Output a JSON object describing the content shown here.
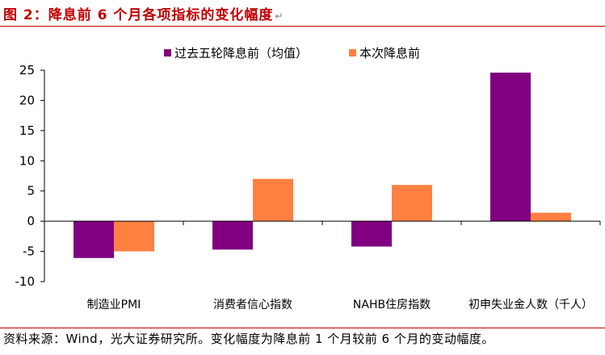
{
  "figure": {
    "title": "图 2：降息前 6 个月各项指标的变化幅度",
    "return_mark": "↵",
    "source": "资料来源：Wind，光大证券研究所。变化幅度为降息前 1 个月较前 6 个月的变动幅度。"
  },
  "colors": {
    "series_1": "#800080",
    "series_2": "#ff8040",
    "title": "#c00000",
    "axis": "#000000"
  },
  "chart_data": {
    "type": "bar",
    "title": "",
    "xlabel": "",
    "ylabel": "",
    "ylim": [
      -10,
      25
    ],
    "yticks": [
      -10,
      -5,
      0,
      5,
      10,
      15,
      20,
      25
    ],
    "ytick_labels": [
      "-10",
      "-5",
      "0",
      "5",
      "10",
      "15",
      "20",
      "25"
    ],
    "grid": false,
    "legend_position": "top-center",
    "categories": [
      "制造业PMI",
      "消费者信心指数",
      "NAHB住房指数",
      "初申失业金人数（千人）"
    ],
    "series": [
      {
        "name": "过去五轮降息前（均值）",
        "values": [
          -6.1,
          -4.7,
          -4.2,
          24.6
        ]
      },
      {
        "name": "本次降息前",
        "values": [
          -5.0,
          7.0,
          6.0,
          1.4
        ]
      }
    ]
  }
}
